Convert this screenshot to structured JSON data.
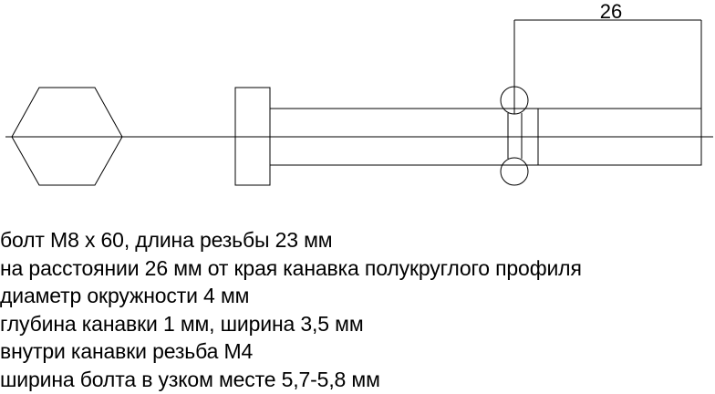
{
  "diagram": {
    "dimension_label": "26"
  },
  "notes": [
    "болт М8 х 60, длина резьбы 23 мм",
    "на расстоянии 26 мм от края канавка полукруглого профиля",
    "диаметр окружности 4 мм",
    "глубина канавки 1 мм, ширина 3,5 мм",
    "внутри канавки резьба М4",
    "ширина болта в узком месте 5,7-5,8 мм"
  ]
}
